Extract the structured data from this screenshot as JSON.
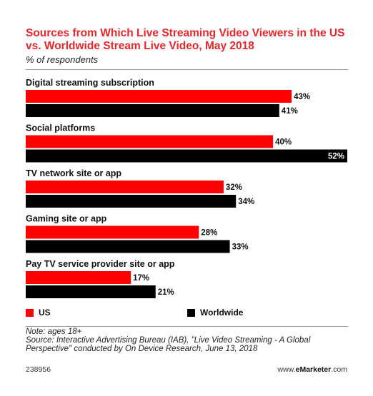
{
  "title": "Sources from Which Live Streaming Video Viewers in the US vs. Worldwide Stream Live Video, May 2018",
  "subtitle": "% of respondents",
  "colors": {
    "us": "#ff0000",
    "worldwide": "#000000"
  },
  "chart_data": {
    "type": "bar",
    "orientation": "horizontal",
    "title": "Sources from Which Live Streaming Video Viewers in the US vs. Worldwide Stream Live Video, May 2018",
    "subtitle": "% of respondents",
    "categories": [
      "Digital streaming subscription",
      "Social platforms",
      "TV network site or app",
      "Gaming site or app",
      "Pay TV service provider site or app"
    ],
    "series": [
      {
        "name": "US",
        "values": [
          43,
          40,
          32,
          28,
          17
        ],
        "labels": [
          "43%",
          "40%",
          "32%",
          "28%",
          "17%"
        ]
      },
      {
        "name": "Worldwide",
        "values": [
          41,
          52,
          34,
          33,
          21
        ],
        "labels": [
          "41%",
          "52%",
          "34%",
          "33%",
          "21%"
        ]
      }
    ],
    "xlim": [
      0,
      52
    ],
    "grid": false,
    "legend": "bottom"
  },
  "note": "Note: ages 18+",
  "source": "Source: Interactive Advertising Bureau (IAB), \"Live Video Streaming - A Global Perspective\" conducted by On Device Research, June 13, 2018",
  "footer": {
    "id": "238956",
    "brand_prefix": "www.",
    "brand_bold": "eMarketer",
    "brand_suffix": ".com"
  }
}
